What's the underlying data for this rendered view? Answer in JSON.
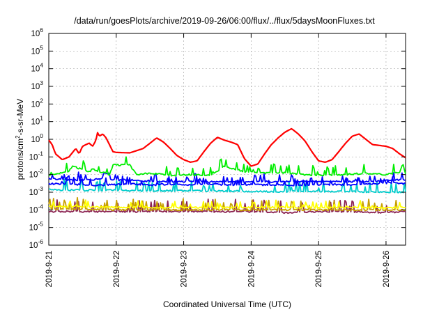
{
  "chart_data": {
    "type": "line",
    "title": "/data/run/goesPlots/archive/2019-09-26/06:00/flux/../flux/5daysMoonFluxes.txt",
    "xlabel": "Coordinated Universal Time (UTC)",
    "ylabel": "protons/cm2-s-sr-MeV",
    "yscale": "log",
    "ylim": [
      1e-06,
      1000000.0
    ],
    "xlim": [
      "2019-09-21",
      "2019-09-26 07:00"
    ],
    "grid": true,
    "legend": "none",
    "y_ticks": [
      {
        "base": "10",
        "exp": "-6"
      },
      {
        "base": "10",
        "exp": "-5"
      },
      {
        "base": "10",
        "exp": "-4"
      },
      {
        "base": "10",
        "exp": "-3"
      },
      {
        "base": "10",
        "exp": "-2"
      },
      {
        "base": "10",
        "exp": "-1"
      },
      {
        "base": "10",
        "exp": "0"
      },
      {
        "base": "10",
        "exp": "1"
      },
      {
        "base": "10",
        "exp": "2"
      },
      {
        "base": "10",
        "exp": "3"
      },
      {
        "base": "10",
        "exp": "4"
      },
      {
        "base": "10",
        "exp": "5"
      },
      {
        "base": "10",
        "exp": "6"
      }
    ],
    "x_ticks": [
      "2019-9-21",
      "2019-9-22",
      "2019-9-23",
      "2019-9-24",
      "2019-9-25",
      "2019-9-26"
    ],
    "x_tick_days": [
      0,
      1,
      2,
      3,
      4,
      5
    ],
    "x_max_days": 5.29,
    "series": [
      {
        "color": "#ff0000",
        "x": [
          0.0,
          0.05,
          0.1,
          0.2,
          0.3,
          0.4,
          0.45,
          0.5,
          0.55,
          0.6,
          0.65,
          0.7,
          0.72,
          0.75,
          0.8,
          0.85,
          0.9,
          0.95,
          1.0,
          1.2,
          1.4,
          1.5,
          1.6,
          1.7,
          1.8,
          1.9,
          2.0,
          2.1,
          2.2,
          2.3,
          2.4,
          2.5,
          2.6,
          2.7,
          2.8,
          2.9,
          3.0,
          3.1,
          3.2,
          3.3,
          3.4,
          3.5,
          3.6,
          3.7,
          3.8,
          3.9,
          4.0,
          4.1,
          4.2,
          4.3,
          4.4,
          4.5,
          4.6,
          4.7,
          4.8,
          4.9,
          5.0,
          5.1,
          5.2,
          5.29
        ],
        "y": [
          0.9,
          0.5,
          0.15,
          0.07,
          0.1,
          0.3,
          0.15,
          0.4,
          0.5,
          0.6,
          0.4,
          0.9,
          2.5,
          1.5,
          2.0,
          1.2,
          0.5,
          0.2,
          0.18,
          0.17,
          0.3,
          0.6,
          1.2,
          0.7,
          0.3,
          0.12,
          0.07,
          0.05,
          0.06,
          0.2,
          0.6,
          1.3,
          0.9,
          0.7,
          0.5,
          0.08,
          0.03,
          0.04,
          0.15,
          0.5,
          1.2,
          2.5,
          4.0,
          2.0,
          0.8,
          0.2,
          0.06,
          0.05,
          0.07,
          0.2,
          0.6,
          1.5,
          2.0,
          1.0,
          0.5,
          0.45,
          0.4,
          0.3,
          0.15,
          0.09
        ]
      },
      {
        "color": "#00ee00",
        "x": [
          0.0,
          0.3,
          0.35,
          0.6,
          0.65,
          0.9,
          0.95,
          1.2,
          1.3,
          1.5,
          1.8,
          2.1,
          2.4,
          2.6,
          2.9,
          3.2,
          3.5,
          3.8,
          4.1,
          4.4,
          4.7,
          5.0,
          5.2,
          5.25,
          5.29
        ],
        "y": [
          0.009,
          0.015,
          0.03,
          0.015,
          0.02,
          0.01,
          0.035,
          0.035,
          0.01,
          0.012,
          0.009,
          0.01,
          0.009,
          0.03,
          0.015,
          0.012,
          0.013,
          0.01,
          0.009,
          0.01,
          0.012,
          0.01,
          0.014,
          0.04,
          0.01
        ]
      },
      {
        "color": "#0000ff",
        "x": [
          0.0,
          0.3,
          0.6,
          0.8,
          0.81,
          0.9,
          0.91,
          1.2,
          1.5,
          1.8,
          2.1,
          2.4,
          2.7,
          3.0,
          3.3,
          3.6,
          3.9,
          4.2,
          4.5,
          4.8,
          5.1,
          5.29
        ],
        "y": [
          0.006,
          0.005,
          0.005,
          0.006,
          0.012,
          0.012,
          0.005,
          0.005,
          0.004,
          0.004,
          0.004,
          0.004,
          0.004,
          0.004,
          0.004,
          0.004,
          0.004,
          0.004,
          0.004,
          0.004,
          0.005,
          0.005
        ]
      },
      {
        "color": "#0000ff",
        "x": [
          0.0,
          0.3,
          0.6,
          0.8,
          0.81,
          1.2,
          1.5,
          1.8,
          2.1,
          2.4,
          2.7,
          3.0,
          3.3,
          3.6,
          3.9,
          4.2,
          4.5,
          4.8,
          5.1,
          5.29
        ],
        "y": [
          0.003,
          0.003,
          0.0025,
          0.0025,
          0.0025,
          0.003,
          0.0025,
          0.0028,
          0.0025,
          0.003,
          0.0025,
          0.0028,
          0.0025,
          0.0025,
          0.0025,
          0.0028,
          0.0025,
          0.003,
          0.0035,
          0.003
        ]
      },
      {
        "color": "#00cccc",
        "x": [
          0.0,
          0.5,
          1.0,
          1.5,
          2.0,
          2.5,
          3.0,
          3.5,
          4.0,
          4.5,
          5.0,
          5.29
        ],
        "y": [
          0.0014,
          0.0013,
          0.0013,
          0.0012,
          0.0012,
          0.0012,
          0.0011,
          0.0011,
          0.0011,
          0.0011,
          0.001,
          0.001
        ]
      },
      {
        "color": "#ffff00",
        "x": [
          0.0,
          0.5,
          1.0,
          1.5,
          2.0,
          2.5,
          3.0,
          3.5,
          4.0,
          4.5,
          5.0,
          5.29
        ],
        "y": [
          0.00015,
          0.00015,
          0.00014,
          0.00014,
          0.00014,
          0.00013,
          0.00014,
          0.00014,
          0.00013,
          0.00014,
          0.00013,
          0.00014
        ]
      },
      {
        "color": "#c8a000",
        "x": [
          0.0,
          0.5,
          1.0,
          1.5,
          2.0,
          2.5,
          3.0,
          3.5,
          4.0,
          4.5,
          5.0,
          5.29
        ],
        "y": [
          0.00011,
          0.00011,
          0.0001,
          0.0001,
          0.0001,
          0.0001,
          0.0001,
          0.0001,
          0.0001,
          0.0001,
          0.0001,
          0.0001
        ]
      },
      {
        "color": "#8b2252",
        "x": [
          0.0,
          0.5,
          1.0,
          1.5,
          2.0,
          2.5,
          3.0,
          3.5,
          4.0,
          4.5,
          5.0,
          5.29
        ],
        "y": [
          8e-05,
          8e-05,
          8e-05,
          8e-05,
          8e-05,
          8e-05,
          8e-05,
          7e-05,
          8e-05,
          8e-05,
          7e-05,
          8e-05
        ]
      }
    ]
  }
}
